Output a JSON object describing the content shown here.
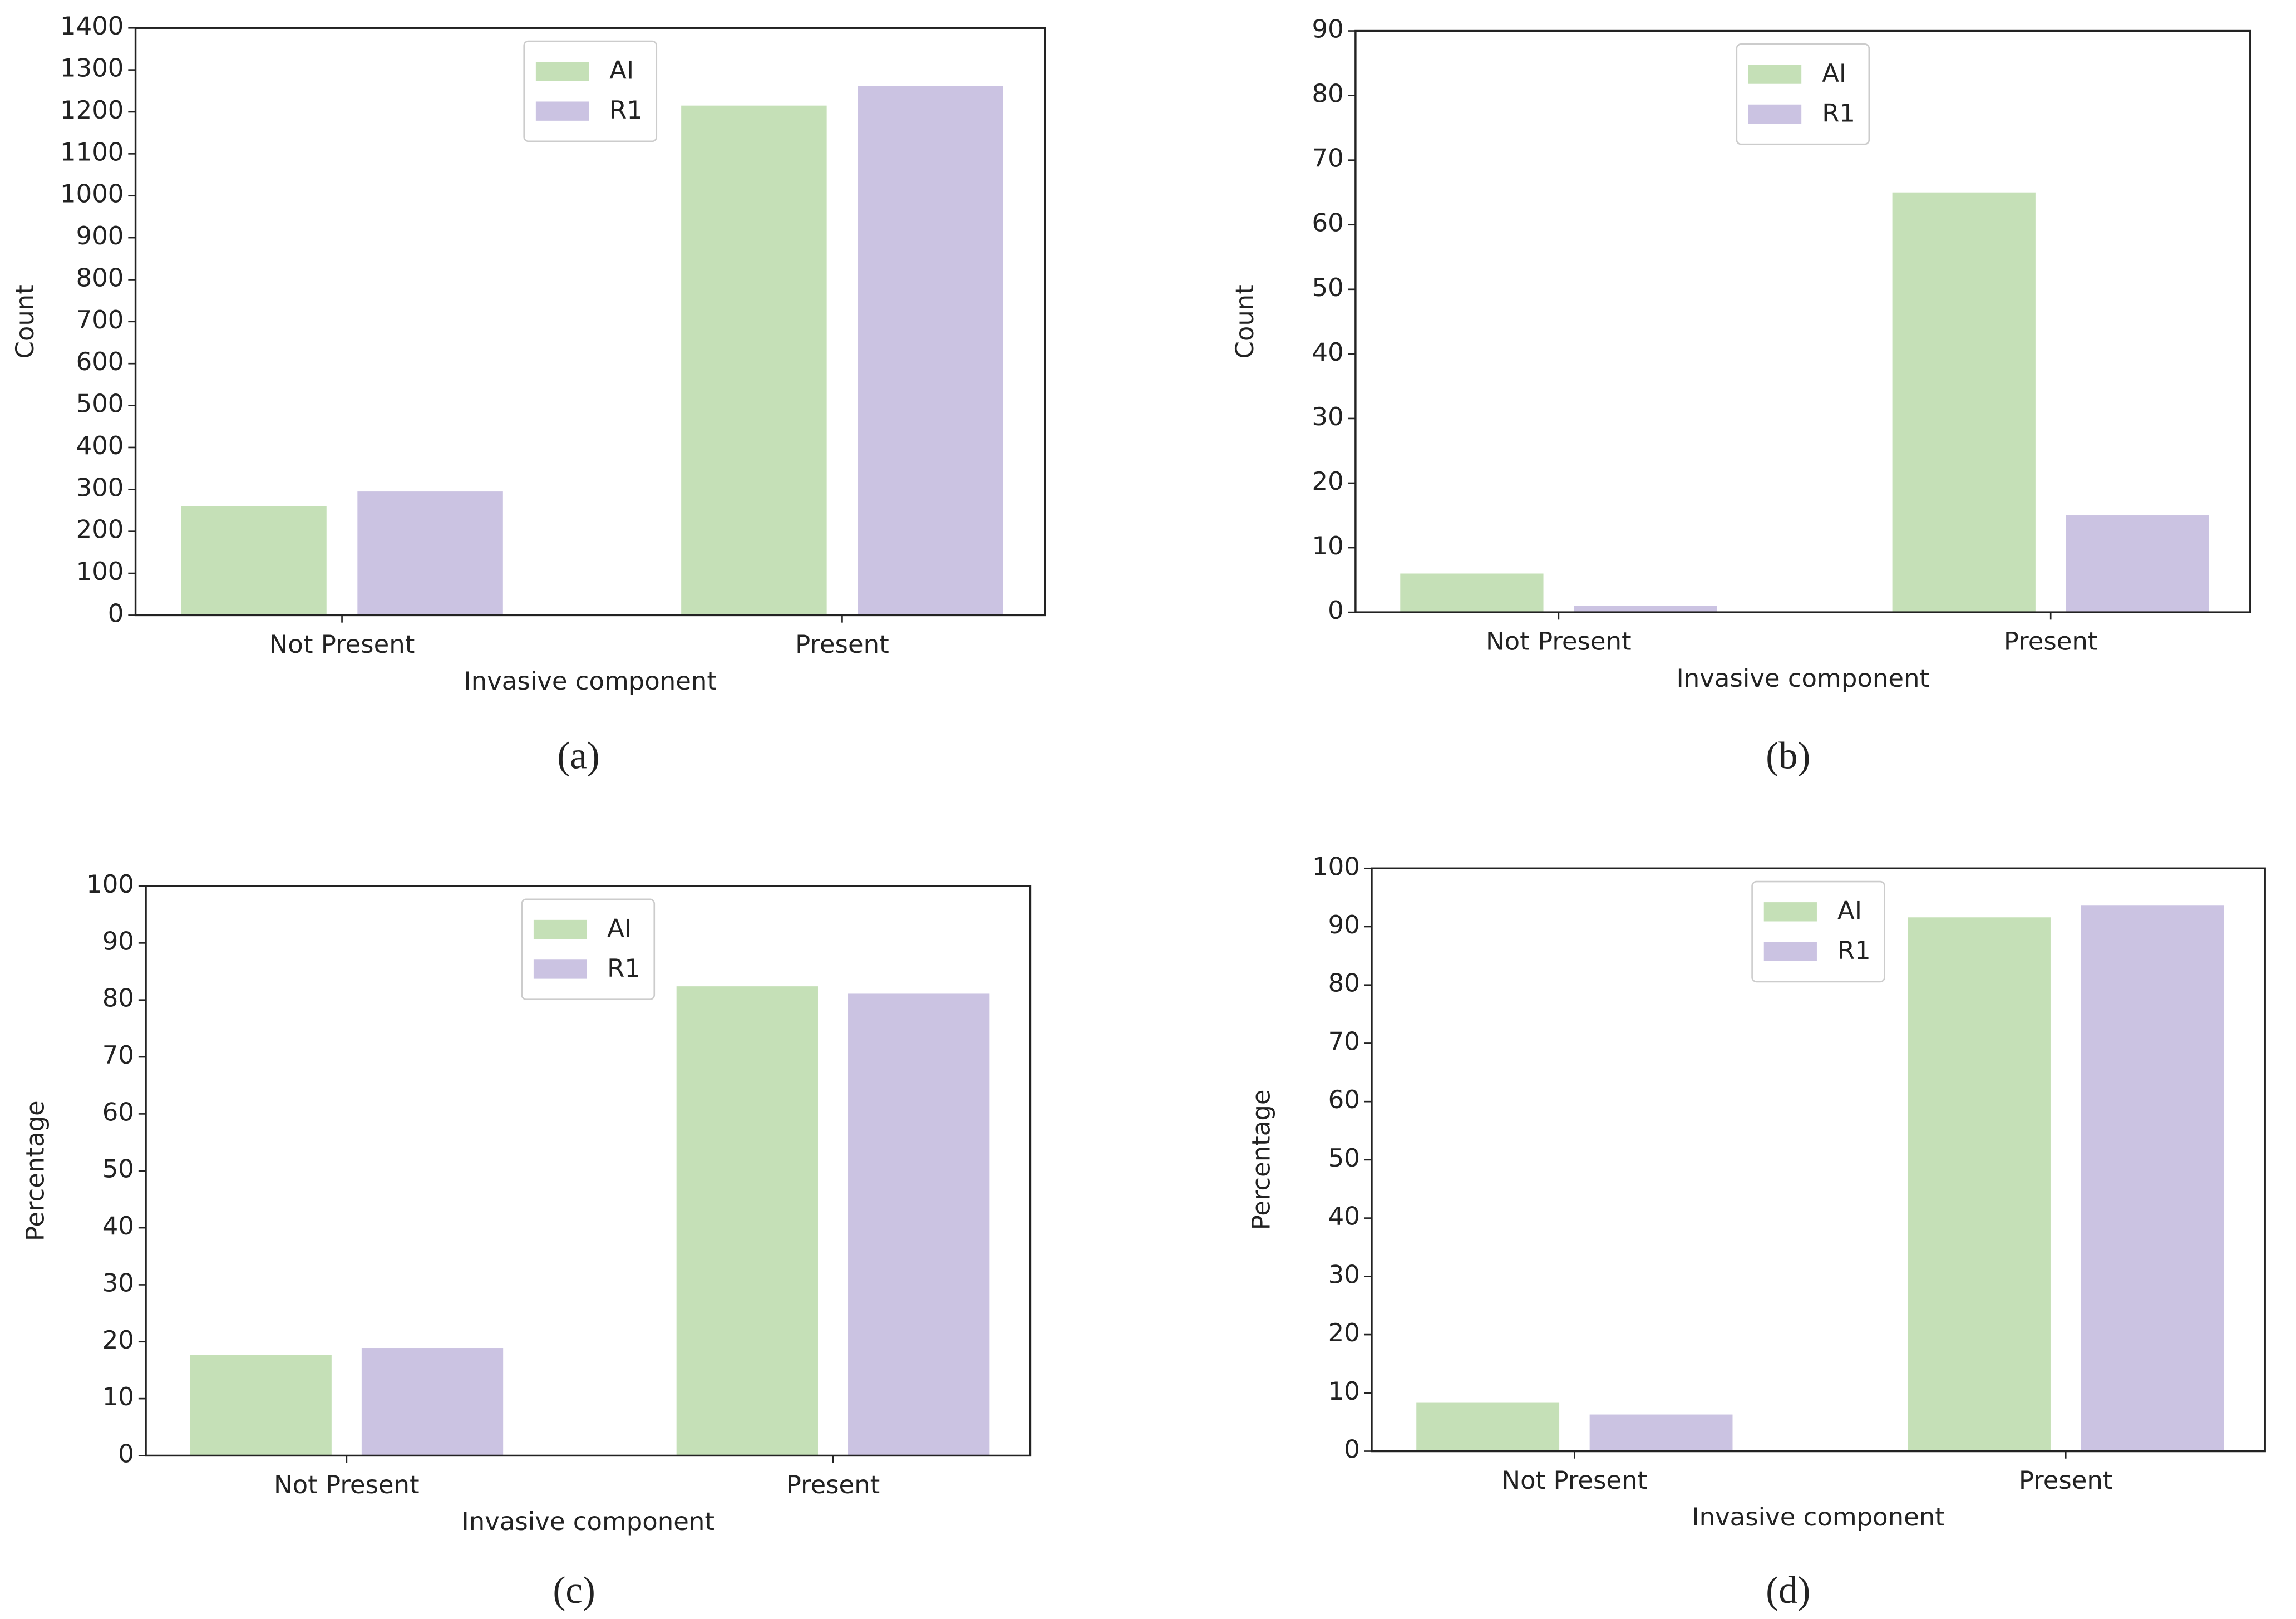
{
  "chart_data": [
    {
      "type": "bar",
      "caption": "(a)",
      "xlabel": "Invasive component",
      "ylabel": "Count",
      "categories": [
        "Not Present",
        "Present"
      ],
      "series": [
        {
          "name": "AI",
          "color": "#c5e0b7",
          "values": [
            260,
            1215
          ]
        },
        {
          "name": "R1",
          "color": "#cbc3e2",
          "values": [
            295,
            1262
          ]
        }
      ],
      "ylim": [
        0,
        1400
      ],
      "yticks": [
        0,
        100,
        200,
        300,
        400,
        500,
        600,
        700,
        800,
        900,
        1000,
        1100,
        1200,
        1300,
        1400
      ],
      "legend": "upper center"
    },
    {
      "type": "bar",
      "caption": "(b)",
      "xlabel": "Invasive component",
      "ylabel": "Count",
      "categories": [
        "Not Present",
        "Present"
      ],
      "series": [
        {
          "name": "AI",
          "color": "#c5e0b7",
          "values": [
            6,
            65
          ]
        },
        {
          "name": "R1",
          "color": "#cbc3e2",
          "values": [
            1,
            15
          ]
        }
      ],
      "ylim": [
        0,
        90
      ],
      "yticks": [
        0,
        10,
        20,
        30,
        40,
        50,
        60,
        70,
        80,
        90
      ],
      "legend": "upper center"
    },
    {
      "type": "bar",
      "caption": "(c)",
      "xlabel": "Invasive component",
      "ylabel": "Percentage",
      "categories": [
        "Not Present",
        "Present"
      ],
      "series": [
        {
          "name": "AI",
          "color": "#c5e0b7",
          "values": [
            17.7,
            82.4
          ]
        },
        {
          "name": "R1",
          "color": "#cbc3e2",
          "values": [
            18.9,
            81.1
          ]
        }
      ],
      "ylim": [
        0,
        100
      ],
      "yticks": [
        0,
        10,
        20,
        30,
        40,
        50,
        60,
        70,
        80,
        90,
        100
      ],
      "legend": "upper center"
    },
    {
      "type": "bar",
      "caption": "(d)",
      "xlabel": "Invasive component",
      "ylabel": "Percentage",
      "categories": [
        "Not Present",
        "Present"
      ],
      "series": [
        {
          "name": "AI",
          "color": "#c5e0b7",
          "values": [
            8.4,
            91.6
          ]
        },
        {
          "name": "R1",
          "color": "#cbc3e2",
          "values": [
            6.3,
            93.7
          ]
        }
      ],
      "ylim": [
        0,
        100
      ],
      "yticks": [
        0,
        10,
        20,
        30,
        40,
        50,
        60,
        70,
        80,
        90,
        100
      ],
      "legend": "upper center"
    }
  ]
}
